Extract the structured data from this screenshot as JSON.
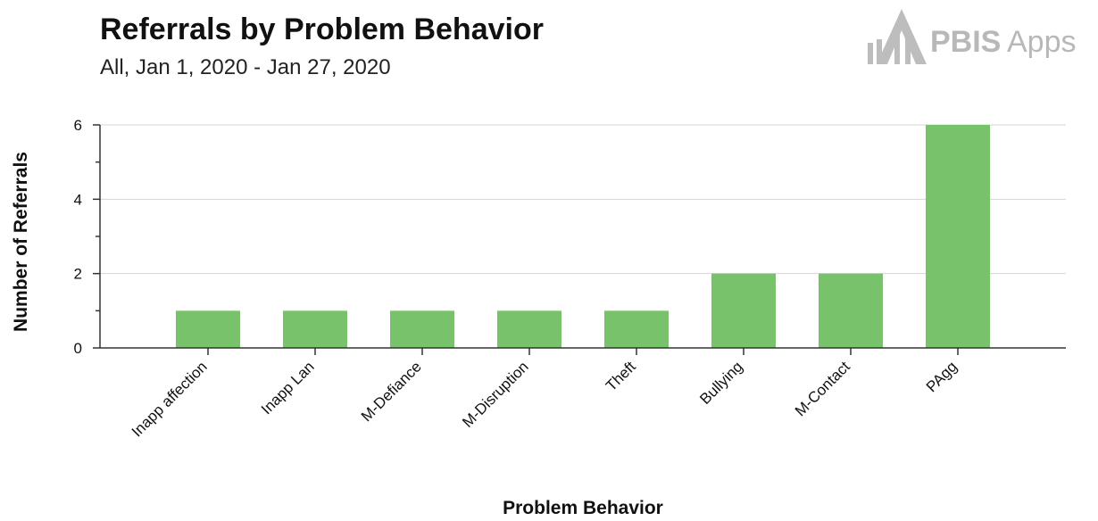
{
  "chart_data": {
    "type": "bar",
    "title": "Referrals by Problem Behavior",
    "subtitle": "All, Jan 1, 2020 - Jan 27, 2020",
    "xlabel": "Problem Behavior",
    "ylabel": "Number of Referrals",
    "categories": [
      "Inapp affection",
      "Inapp Lan",
      "M-Defiance",
      "M-Disruption",
      "Theft",
      "Bullying",
      "M-Contact",
      "PAgg"
    ],
    "values": [
      1,
      1,
      1,
      1,
      1,
      2,
      2,
      6
    ],
    "ylim": [
      0,
      6
    ],
    "yticks": [
      0,
      2,
      4,
      6
    ],
    "grid": true,
    "bar_color": "#77c26a",
    "legend": "none"
  },
  "logo": {
    "text_bold": "PBIS",
    "text_light": "Apps",
    "color": "#b8b8b8"
  }
}
